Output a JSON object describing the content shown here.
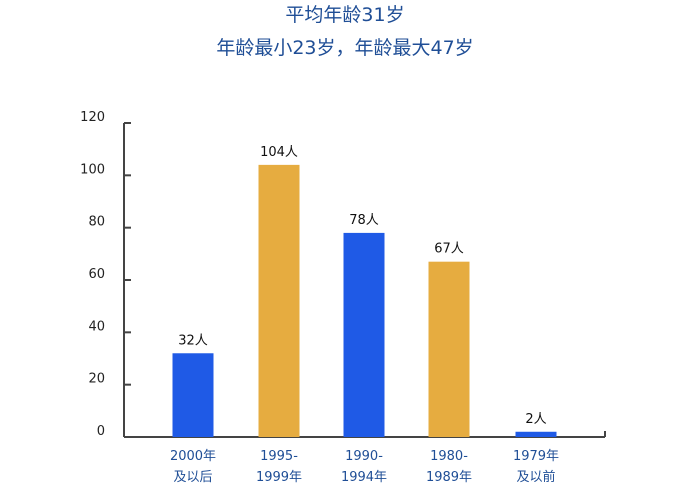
{
  "chart_data": {
    "type": "bar",
    "title": "平均年龄31岁",
    "subtitle": "年龄最小23岁，年龄最大47岁",
    "categories": [
      [
        "2000年",
        "及以后"
      ],
      [
        "1995-",
        "1999年"
      ],
      [
        "1990-",
        "1994年"
      ],
      [
        "1980-",
        "1989年"
      ],
      [
        "1979年",
        "及以前"
      ]
    ],
    "values": [
      32,
      104,
      78,
      67,
      2
    ],
    "data_labels": [
      "32人",
      "104人",
      "78人",
      "67人",
      "2人"
    ],
    "bar_colors": [
      "#1f5ae6",
      "#e6ac40",
      "#1f5ae6",
      "#e6ac40",
      "#1f5ae6"
    ],
    "yticks": [
      "0",
      "20",
      "40",
      "60",
      "80",
      "100",
      "120"
    ],
    "ylim": [
      0,
      120
    ],
    "xlabel": "",
    "ylabel": "",
    "grid": false,
    "legend": "none"
  }
}
